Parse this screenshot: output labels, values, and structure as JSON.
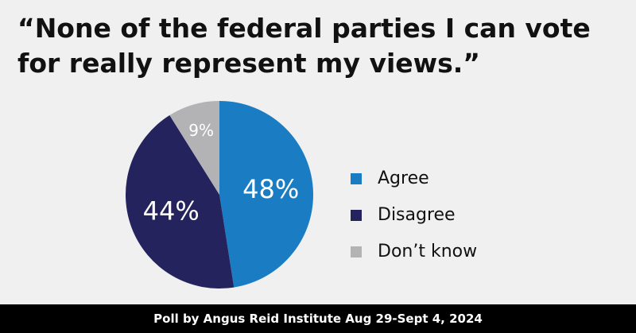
{
  "chart_data": {
    "type": "pie",
    "title": "“None of the federal parties I can vote for really represent my views.”",
    "categories": [
      "Agree",
      "Disagree",
      "Don’t know"
    ],
    "values": [
      48,
      44,
      9
    ],
    "value_labels": [
      "48%",
      "44%",
      "9%"
    ],
    "colors": [
      "#1a7dc4",
      "#24235e",
      "#b3b3b6"
    ],
    "source": "Poll by Angus Reid Institute Aug 29-Sept 4, 2024"
  }
}
